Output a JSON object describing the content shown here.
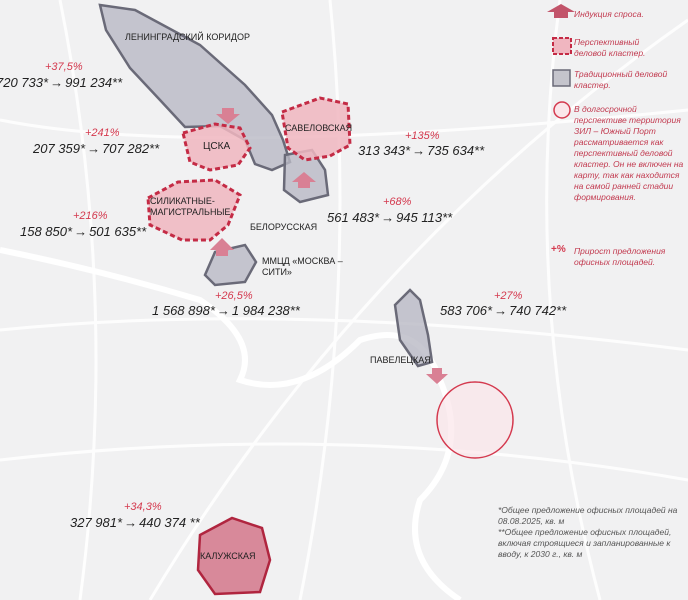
{
  "colors": {
    "accent": "#d4394e",
    "prospective_fill": "#f0b6c0",
    "traditional_fill": "#b9b9c4",
    "traditional_stroke": "#6a6a78"
  },
  "clusters": [
    {
      "name": "ЛЕНИНГРАДСКИЙ КОРИДОР",
      "type": "traditional",
      "current": "720 733*",
      "future": "991 234**",
      "growth": "+37,5%"
    },
    {
      "name": "ЦСКА",
      "type": "prospective",
      "current": "207 359*",
      "future": "707 282**",
      "growth": "+241%"
    },
    {
      "name": "САВЕЛОВСКАЯ",
      "type": "prospective",
      "current": "313 343*",
      "future": "735 634**",
      "growth": "+135%"
    },
    {
      "name": "БЕЛОРУССКАЯ",
      "type": "traditional",
      "current": "561 483*",
      "future": "945 113**",
      "growth": "+68%"
    },
    {
      "name": "СИЛИКАТНЫЕ-МАГИСТРАЛЬНЫЕ",
      "type": "prospective",
      "current": "158 850*",
      "future": "501 635**",
      "growth": "+216%"
    },
    {
      "name": "ММЦД «МОСКВА – СИТИ»",
      "type": "traditional",
      "current": "1 568 898*",
      "future": "1 984 238**",
      "growth": "+26,5%"
    },
    {
      "name": "ПАВЕЛЕЦКАЯ",
      "type": "traditional",
      "current": "583 706*",
      "future": "740 742**",
      "growth": "+27%"
    },
    {
      "name": "КАЛУЖСКАЯ",
      "type": "prospective",
      "current": "327 981*",
      "future": "440 374 **",
      "growth": "+34,3%"
    }
  ],
  "arrow_symbol": "→",
  "legend": {
    "demand": "Индукция спроса.",
    "prospective": "Перспективный деловой кластер.",
    "traditional": "Традиционный деловой кластер.",
    "zil": "В долгосрочной перспективе территория ЗИЛ – Южный Порт рассматривается как перспективный деловой кластер. Он не включен на карту, так как находится на самой ранней стадии формирования.",
    "pct_symbol": "+%",
    "pct": "Прирост предложения офисных площадей."
  },
  "notes": {
    "n1": "*Общее предложение офисных площадей на 08.08.2025, кв. м",
    "n2": "**Общее предложение офисных площадей, включая строящиеся и запланированные к вводу, к 2030 г., кв. м"
  }
}
